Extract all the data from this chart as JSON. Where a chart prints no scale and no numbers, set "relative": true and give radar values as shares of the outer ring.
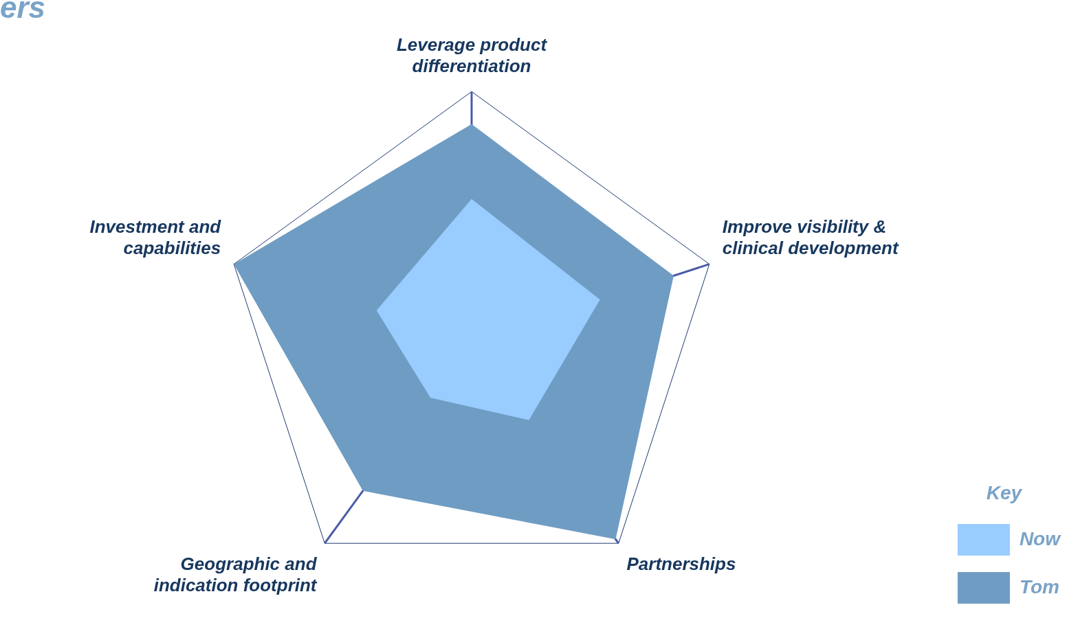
{
  "chart_data": {
    "type": "radar",
    "title": "ers",
    "relative": true,
    "categories": [
      "Leverage product differentiation",
      "Improve visibility & clinical development",
      "Partnerships",
      "Geographic and indication footprint",
      "Investment and capabilities"
    ],
    "series": [
      {
        "name": "Now",
        "color": "#99ccff",
        "values": [
          0.57,
          0.54,
          0.39,
          0.28,
          0.4
        ]
      },
      {
        "name": "Tom",
        "color": "#6f9cc3",
        "values": [
          0.87,
          0.85,
          0.98,
          0.74,
          1.0
        ]
      }
    ],
    "grid": true,
    "legend": "bottom right",
    "legend_title": "Key"
  }
}
